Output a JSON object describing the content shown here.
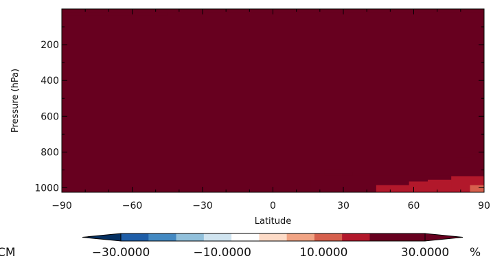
{
  "chart_data": {
    "type": "heatmap",
    "xlabel": "Latitude",
    "ylabel": "Pressure (hPa)",
    "xlim": [
      -90,
      90
    ],
    "ylim": [
      1025,
      0
    ],
    "x_ticks": [
      -90,
      -60,
      -30,
      0,
      30,
      60,
      90
    ],
    "x_tick_labels": [
      "−90",
      "−60",
      "−30",
      "0",
      "30",
      "60",
      "90"
    ],
    "y_ticks": [
      200,
      400,
      600,
      800,
      1000
    ],
    "y_tick_labels": [
      "200",
      "400",
      "600",
      "800",
      "1000"
    ],
    "background_value": 32,
    "cells": [
      {
        "lat": [
          -90,
          90
        ],
        "p": [
          0,
          20
        ],
        "value": 24
      },
      {
        "lat": [
          -90,
          -45
        ],
        "p": [
          20,
          37
        ],
        "value": 27
      },
      {
        "lat": [
          -45,
          90
        ],
        "p": [
          20,
          30
        ],
        "value": 27
      },
      {
        "lat": [
          16,
          90
        ],
        "p": [
          930,
          1025
        ],
        "value": 24
      },
      {
        "lat": [
          22,
          30
        ],
        "p": [
          895,
          930
        ],
        "value": 24
      },
      {
        "lat": [
          30,
          34
        ],
        "p": [
          910,
          930
        ],
        "value": 24
      },
      {
        "lat": [
          44,
          60
        ],
        "p": [
          985,
          1025
        ],
        "value": 16
      },
      {
        "lat": [
          58,
          66
        ],
        "p": [
          965,
          1025
        ],
        "value": 16
      },
      {
        "lat": [
          66,
          78
        ],
        "p": [
          955,
          1025
        ],
        "value": 16
      },
      {
        "lat": [
          76,
          90
        ],
        "p": [
          935,
          1025
        ],
        "value": 16
      },
      {
        "lat": [
          66,
          72
        ],
        "p": [
          860,
          930
        ],
        "value": 24
      },
      {
        "lat": [
          72,
          78
        ],
        "p": [
          850,
          930
        ],
        "value": 24
      },
      {
        "lat": [
          78,
          84
        ],
        "p": [
          830,
          930
        ],
        "value": 24
      },
      {
        "lat": [
          84,
          90
        ],
        "p": [
          815,
          935
        ],
        "value": 24
      },
      {
        "lat": [
          84,
          90
        ],
        "p": [
          985,
          1025
        ],
        "value": 12
      }
    ],
    "colorbar": {
      "levels": [
        -35,
        -30,
        -25,
        -20,
        -15,
        -10,
        -5,
        5,
        10,
        15,
        20,
        25,
        30,
        35
      ],
      "colors": [
        "#0d2f5c",
        "#1f5ea8",
        "#4389c2",
        "#91c0db",
        "#d0e4f0",
        "#ffffff",
        "#fddbc7",
        "#f1a484",
        "#d6604d",
        "#b2182b",
        "#67001f"
      ],
      "under_color": "#053061",
      "over_color": "#67001f",
      "tick_values": [
        -30,
        -10,
        10,
        30
      ],
      "tick_labels": [
        "−30.0000",
        "−10.0000",
        "10.0000",
        "30.0000"
      ],
      "unit": "%",
      "left_text": "CM"
    }
  }
}
